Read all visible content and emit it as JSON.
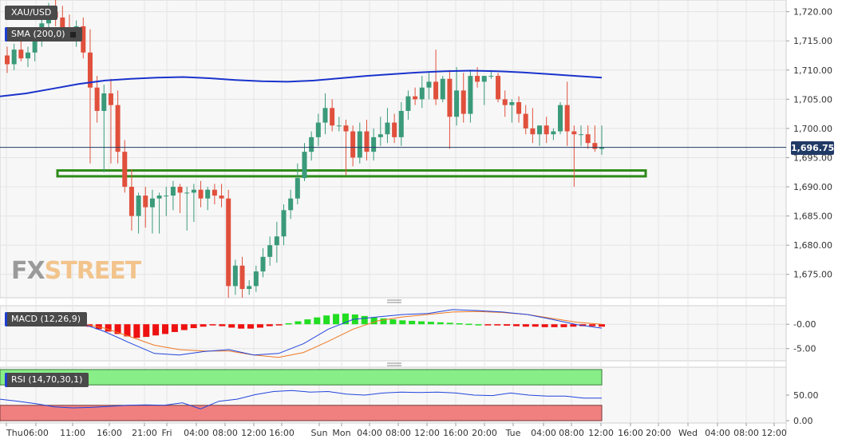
{
  "instrument": "XAU/USD",
  "indicators": {
    "sma_label": "SMA (200,0)",
    "macd_label": "MACD (12,26,9)",
    "rsi_label": "RSI (14,70,30,1)"
  },
  "logo": {
    "part1": "FX",
    "part2": "STREET"
  },
  "last_price": "1,696.75",
  "colors": {
    "up": "#3a9a7a",
    "down": "#e0503c",
    "sma": "#1a33cc",
    "support_zone": "#2e8b1a",
    "macd_pos": "#22dd22",
    "macd_neg": "#ee1111",
    "macd_line": "#2244dd",
    "signal_line": "#ee7722",
    "rsi_over": "#88ee88",
    "rsi_under": "#f08080",
    "rsi_line": "#2244dd",
    "price_tag": "#203a66"
  },
  "chart_data": [
    {
      "type": "candlestick",
      "title": "XAU/USD",
      "price_axis": {
        "ylim": [
          1671,
          1722
        ],
        "ticks": [
          "1,720.00",
          "1,715.00",
          "1,710.00",
          "1,705.00",
          "1,700.00",
          "1,695.00",
          "1,690.00",
          "1,685.00",
          "1,680.00",
          "1,675.00"
        ],
        "tick_values": [
          1720,
          1715,
          1710,
          1705,
          1700,
          1695,
          1690,
          1685,
          1680,
          1675
        ]
      },
      "time_axis": {
        "labels": [
          "Thu",
          "06:00",
          "11:00",
          "16:00",
          "21:00",
          "Fri",
          "04:00",
          "08:00",
          "12:00",
          "16:00",
          "Sun",
          "Mon",
          "04:00",
          "08:00",
          "12:00",
          "16:00",
          "20:00",
          "Tue",
          "04:00",
          "08:00",
          "12:00",
          "16:00",
          "20:00",
          "Wed",
          "04:00",
          "08:00",
          "12:00"
        ],
        "positions": [
          8,
          45,
          91,
          137,
          181,
          209,
          246,
          282,
          318,
          353,
          400,
          428,
          463,
          499,
          535,
          571,
          607,
          643,
          681,
          716,
          753,
          790,
          825,
          862,
          899,
          935,
          970
        ]
      },
      "candles": [
        [
          1712.5,
          1714.0,
          1709.5,
          1711.0
        ],
        [
          1711.0,
          1714.5,
          1710.0,
          1713.5
        ],
        [
          1713.5,
          1715.5,
          1711.5,
          1712.0
        ],
        [
          1712.0,
          1714.0,
          1710.5,
          1713.0
        ],
        [
          1713.0,
          1716.0,
          1711.5,
          1715.5
        ],
        [
          1715.5,
          1719.0,
          1714.0,
          1718.0
        ],
        [
          1718.0,
          1721.5,
          1716.5,
          1720.0
        ],
        [
          1720.0,
          1722.0,
          1717.5,
          1719.0
        ],
        [
          1719.0,
          1721.0,
          1716.5,
          1717.0
        ],
        [
          1717.0,
          1719.5,
          1715.0,
          1716.0
        ],
        [
          1716.0,
          1718.5,
          1714.0,
          1717.5
        ],
        [
          1717.5,
          1719.0,
          1712.0,
          1713.0
        ],
        [
          1713.0,
          1717.0,
          1694.0,
          1707.0
        ],
        [
          1707.0,
          1709.0,
          1701.0,
          1703.0
        ],
        [
          1703.0,
          1707.5,
          1692.5,
          1706.0
        ],
        [
          1706.0,
          1708.5,
          1694.0,
          1704.0
        ],
        [
          1704.0,
          1706.5,
          1694.0,
          1696.0
        ],
        [
          1696.0,
          1698.0,
          1689.0,
          1690.0
        ],
        [
          1690.0,
          1693.0,
          1682.5,
          1685.0
        ],
        [
          1685.0,
          1689.0,
          1682.0,
          1688.5
        ],
        [
          1688.5,
          1690.0,
          1683.0,
          1686.5
        ],
        [
          1686.5,
          1689.5,
          1682.0,
          1688.0
        ],
        [
          1688.0,
          1689.0,
          1682.0,
          1688.5
        ],
        [
          1688.5,
          1690.0,
          1685.0,
          1688.5
        ],
        [
          1688.5,
          1691.0,
          1686.0,
          1690.0
        ],
        [
          1690.0,
          1690.5,
          1685.5,
          1689.0
        ],
        [
          1689.0,
          1690.0,
          1682.5,
          1689.0
        ],
        [
          1689.0,
          1690.5,
          1684.0,
          1689.5
        ],
        [
          1689.5,
          1691.0,
          1686.5,
          1688.0
        ],
        [
          1688.0,
          1690.0,
          1686.0,
          1689.5
        ],
        [
          1689.5,
          1690.5,
          1687.0,
          1688.5
        ],
        [
          1688.5,
          1690.5,
          1686.5,
          1688.0
        ],
        [
          1688.0,
          1689.5,
          1671.0,
          1673.0
        ],
        [
          1673.0,
          1677.5,
          1671.5,
          1676.5
        ],
        [
          1676.5,
          1678.0,
          1671.0,
          1672.5
        ],
        [
          1672.5,
          1674.0,
          1671.5,
          1673.0
        ],
        [
          1673.0,
          1676.5,
          1672.0,
          1675.5
        ],
        [
          1675.5,
          1679.5,
          1674.5,
          1678.0
        ],
        [
          1678.0,
          1681.5,
          1676.5,
          1680.0
        ],
        [
          1680.0,
          1684.0,
          1677.0,
          1681.5
        ],
        [
          1681.5,
          1687.0,
          1680.0,
          1686.0
        ],
        [
          1686.0,
          1689.5,
          1684.5,
          1688.0
        ],
        [
          1688.0,
          1694.0,
          1687.0,
          1691.5
        ],
        [
          1691.5,
          1697.5,
          1691.0,
          1696.0
        ],
        [
          1696.0,
          1699.5,
          1694.5,
          1698.5
        ],
        [
          1698.5,
          1702.5,
          1697.0,
          1701.0
        ],
        [
          1701.0,
          1706.0,
          1699.0,
          1703.5
        ],
        [
          1703.5,
          1705.0,
          1699.5,
          1700.5
        ],
        [
          1700.5,
          1702.0,
          1699.5,
          1700.5
        ],
        [
          1700.5,
          1701.5,
          1692.0,
          1699.5
        ],
        [
          1699.5,
          1700.5,
          1693.5,
          1695.0
        ],
        [
          1695.0,
          1701.0,
          1694.0,
          1699.5
        ],
        [
          1699.5,
          1701.5,
          1694.5,
          1696.0
        ],
        [
          1696.0,
          1700.0,
          1694.5,
          1698.5
        ],
        [
          1698.5,
          1702.0,
          1697.0,
          1699.0
        ],
        [
          1699.0,
          1703.5,
          1697.5,
          1701.0
        ],
        [
          1701.0,
          1702.5,
          1697.5,
          1698.5
        ],
        [
          1698.5,
          1704.5,
          1697.0,
          1703.0
        ],
        [
          1703.0,
          1706.5,
          1701.5,
          1705.5
        ],
        [
          1705.5,
          1707.0,
          1704.0,
          1705.0
        ],
        [
          1705.0,
          1709.0,
          1703.5,
          1707.0
        ],
        [
          1707.0,
          1709.5,
          1705.0,
          1708.0
        ],
        [
          1708.0,
          1713.5,
          1704.0,
          1705.0
        ],
        [
          1705.0,
          1709.0,
          1704.5,
          1708.5
        ],
        [
          1708.5,
          1710.0,
          1696.5,
          1702.0
        ],
        [
          1702.0,
          1710.5,
          1700.5,
          1706.5
        ],
        [
          1706.5,
          1709.5,
          1701.0,
          1702.5
        ],
        [
          1702.5,
          1710.0,
          1701.0,
          1709.0
        ],
        [
          1709.0,
          1710.5,
          1707.0,
          1708.0
        ],
        [
          1708.0,
          1709.0,
          1704.0,
          1709.0
        ],
        [
          1709.0,
          1710.0,
          1708.5,
          1709.0
        ],
        [
          1709.0,
          1709.5,
          1704.5,
          1705.0
        ],
        [
          1705.0,
          1706.5,
          1702.0,
          1704.0
        ],
        [
          1704.0,
          1705.0,
          1701.0,
          1704.5
        ],
        [
          1704.5,
          1705.5,
          1701.0,
          1702.5
        ],
        [
          1702.5,
          1704.0,
          1699.0,
          1700.0
        ],
        [
          1700.0,
          1703.5,
          1697.5,
          1699.0
        ],
        [
          1699.0,
          1700.5,
          1697.0,
          1700.5
        ],
        [
          1700.5,
          1702.0,
          1697.5,
          1699.0
        ],
        [
          1699.0,
          1700.0,
          1698.0,
          1699.5
        ],
        [
          1699.5,
          1704.5,
          1699.0,
          1704.0
        ],
        [
          1704.0,
          1708.0,
          1697.0,
          1699.5
        ],
        [
          1699.5,
          1700.5,
          1690.0,
          1699.0
        ],
        [
          1699.0,
          1700.5,
          1697.0,
          1699.0
        ],
        [
          1699.0,
          1700.5,
          1696.5,
          1697.5
        ],
        [
          1697.5,
          1700.5,
          1696.0,
          1696.5
        ],
        [
          1696.5,
          1700.5,
          1695.5,
          1696.75
        ]
      ],
      "sma_200": [
        1705.5,
        1706.0,
        1706.8,
        1707.6,
        1708.2,
        1708.5,
        1708.7,
        1708.8,
        1708.6,
        1708.3,
        1708.1,
        1708.0,
        1708.2,
        1708.6,
        1709.0,
        1709.3,
        1709.6,
        1709.8,
        1709.9,
        1709.8,
        1709.6,
        1709.3,
        1709.0,
        1708.7
      ],
      "support_zone": [
        1691.8,
        1692.8
      ]
    },
    {
      "type": "macd",
      "title": "MACD (12,26,9)",
      "yticks": [
        "-0.00",
        "-5.00"
      ],
      "ylim": [
        -7.5,
        3.8
      ],
      "histogram": [
        -0.2,
        -0.5,
        -1.0,
        -1.5,
        -2.0,
        -2.5,
        -2.8,
        -2.6,
        -2.3,
        -2.0,
        -1.6,
        -1.2,
        -0.8,
        -0.5,
        -0.2,
        -0.4,
        -0.7,
        -0.9,
        -0.9,
        -0.7,
        -0.4,
        -0.2,
        0.2,
        0.6,
        1.0,
        1.4,
        1.8,
        2.1,
        2.2,
        2.0,
        1.7,
        1.4,
        1.2,
        1.0,
        0.8,
        0.7,
        0.6,
        0.5,
        0.4,
        0.3,
        0.2,
        0.1,
        0.0,
        -0.1,
        -0.2,
        -0.3,
        -0.4,
        -0.5,
        -0.5,
        -0.6,
        -0.6,
        -0.6,
        -0.5,
        -0.4,
        -0.4,
        -0.5
      ],
      "macd_line": [
        0.3,
        -1.5,
        -3.8,
        -6.0,
        -6.3,
        -5.6,
        -5.2,
        -6.3,
        -6.0,
        -4.0,
        -1.0,
        1.0,
        1.5,
        2.0,
        2.2,
        3.0,
        2.8,
        2.5,
        2.0,
        1.0,
        -0.1,
        -0.8
      ],
      "signal_line": [
        0.2,
        -0.8,
        -2.5,
        -4.3,
        -5.2,
        -5.5,
        -5.5,
        -6.3,
        -6.8,
        -5.8,
        -3.5,
        -1.0,
        0.7,
        1.5,
        2.0,
        2.5,
        2.6,
        2.4,
        2.0,
        1.2,
        0.4,
        0.0
      ]
    },
    {
      "type": "rsi",
      "title": "RSI (14,70,30,1)",
      "yticks": [
        "50.00",
        "0.00"
      ],
      "ylim": [
        0,
        100
      ],
      "bands": [
        70,
        30
      ],
      "values": [
        42,
        38,
        33,
        27,
        25,
        26,
        28,
        30,
        31,
        30,
        35,
        23,
        38,
        42,
        51,
        57,
        59,
        56,
        57,
        52,
        50,
        54,
        56,
        55,
        56,
        54,
        50,
        49,
        54,
        50,
        48,
        48,
        44,
        44
      ]
    }
  ]
}
